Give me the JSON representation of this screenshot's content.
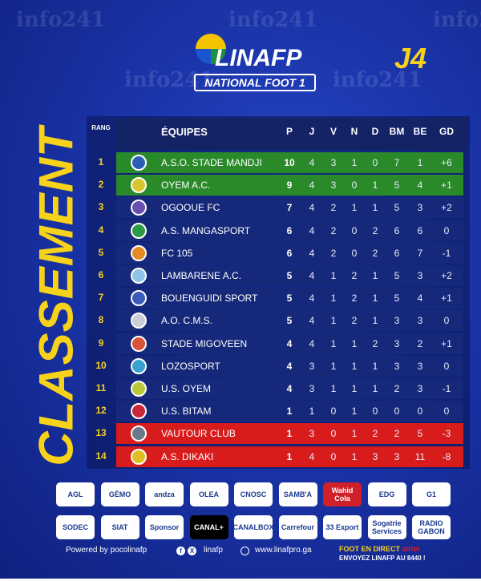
{
  "watermark": "info241",
  "logo": {
    "name": "LINAFP",
    "subtitle": "NATIONAL FOOT 1"
  },
  "round": "J4",
  "title": "Classement",
  "table": {
    "headers": {
      "rank": "RANG",
      "team": "ÉQUIPES",
      "p": "P",
      "j": "J",
      "v": "V",
      "n": "N",
      "d": "D",
      "bm": "BM",
      "be": "BE",
      "gd": "GD"
    },
    "rows": [
      {
        "rank": "1",
        "team": "A.S.O. STADE MANDJI",
        "p": "10",
        "j": "4",
        "v": "3",
        "n": "1",
        "d": "0",
        "bm": "7",
        "be": "1",
        "gd": "+6",
        "zone": "green",
        "crest": "#2b5fb5"
      },
      {
        "rank": "2",
        "team": "OYEM A.C.",
        "p": "9",
        "j": "4",
        "v": "3",
        "n": "0",
        "d": "1",
        "bm": "5",
        "be": "4",
        "gd": "+1",
        "zone": "green",
        "crest": "#d8c630"
      },
      {
        "rank": "3",
        "team": "OGOOUE FC",
        "p": "7",
        "j": "4",
        "v": "2",
        "n": "1",
        "d": "1",
        "bm": "5",
        "be": "3",
        "gd": "+2",
        "zone": "",
        "crest": "#6a4fb0"
      },
      {
        "rank": "4",
        "team": "A.S. MANGASPORT",
        "p": "6",
        "j": "4",
        "v": "2",
        "n": "0",
        "d": "2",
        "bm": "6",
        "be": "6",
        "gd": "0",
        "zone": "",
        "crest": "#2c9a48"
      },
      {
        "rank": "5",
        "team": "FC 105",
        "p": "6",
        "j": "4",
        "v": "2",
        "n": "0",
        "d": "2",
        "bm": "6",
        "be": "7",
        "gd": "-1",
        "zone": "",
        "crest": "#e48a22"
      },
      {
        "rank": "6",
        "team": "LAMBARENE A.C.",
        "p": "5",
        "j": "4",
        "v": "1",
        "n": "2",
        "d": "1",
        "bm": "5",
        "be": "3",
        "gd": "+2",
        "zone": "",
        "crest": "#8fc4e8"
      },
      {
        "rank": "7",
        "team": "BOUENGUIDI SPORT",
        "p": "5",
        "j": "4",
        "v": "1",
        "n": "2",
        "d": "1",
        "bm": "5",
        "be": "4",
        "gd": "+1",
        "zone": "",
        "crest": "#3a5bb8"
      },
      {
        "rank": "8",
        "team": "A.O. C.M.S.",
        "p": "5",
        "j": "4",
        "v": "1",
        "n": "2",
        "d": "1",
        "bm": "3",
        "be": "3",
        "gd": "0",
        "zone": "",
        "crest": "#c9ced8"
      },
      {
        "rank": "9",
        "team": "STADE MIGOVEEN",
        "p": "4",
        "j": "4",
        "v": "1",
        "n": "1",
        "d": "2",
        "bm": "3",
        "be": "2",
        "gd": "+1",
        "zone": "",
        "crest": "#d8553a"
      },
      {
        "rank": "10",
        "team": "LOZOSPORT",
        "p": "4",
        "j": "3",
        "v": "1",
        "n": "1",
        "d": "1",
        "bm": "3",
        "be": "3",
        "gd": "0",
        "zone": "",
        "crest": "#3aa0d0"
      },
      {
        "rank": "11",
        "team": "U.S. OYEM",
        "p": "4",
        "j": "3",
        "v": "1",
        "n": "1",
        "d": "1",
        "bm": "2",
        "be": "3",
        "gd": "-1",
        "zone": "",
        "crest": "#b8c83a"
      },
      {
        "rank": "12",
        "team": "U.S. BITAM",
        "p": "1",
        "j": "1",
        "v": "0",
        "n": "1",
        "d": "0",
        "bm": "0",
        "be": "0",
        "gd": "0",
        "zone": "",
        "crest": "#c8283a"
      },
      {
        "rank": "13",
        "team": "VAUTOUR CLUB",
        "p": "1",
        "j": "3",
        "v": "0",
        "n": "1",
        "d": "2",
        "bm": "2",
        "be": "5",
        "gd": "-3",
        "zone": "red",
        "crest": "#6a7a8a"
      },
      {
        "rank": "14",
        "team": "A.S. DIKAKI",
        "p": "1",
        "j": "4",
        "v": "0",
        "n": "1",
        "d": "3",
        "bm": "3",
        "be": "11",
        "gd": "-8",
        "zone": "red",
        "crest": "#e0c020"
      }
    ]
  },
  "sponsors": [
    [
      "AGL",
      "GĒMO",
      "andza",
      "OLEA",
      "CNOSC",
      "SAMB'A",
      "Wahid Cola",
      "EDG",
      "G1"
    ],
    [
      "SODEC",
      "SIAT",
      "Sponsor",
      "CANAL+",
      "CANALBOX",
      "Carrefour",
      "33 Export",
      "Sogatrie Services",
      "RADIO GABON"
    ]
  ],
  "footer": {
    "powered": "Powered by pocolinafp",
    "social": "linafp",
    "website": "www.linafpro.ga",
    "direct": "FOOT EN DIRECT",
    "operator": "airtel",
    "sms": "ENVOYEZ LINAFP AU 8440 !"
  },
  "colors": {
    "background": "#1a34a8",
    "accent": "#f7d21a",
    "promotion": "#2a8a2a",
    "relegation": "#d81c1c"
  }
}
